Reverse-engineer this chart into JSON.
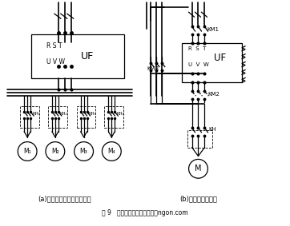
{
  "title_a": "(a)一台变频器接多台电动机",
  "title_b": "(b)变频和工频切换",
  "caption": "图 9   必须接输出接触器的场合ngon.com",
  "bg_color": "#ffffff"
}
